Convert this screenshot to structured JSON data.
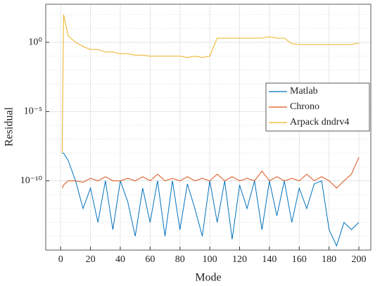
{
  "chart_data": {
    "type": "line",
    "x_label": "Mode",
    "y_label": "Residual",
    "x": [
      1,
      2,
      5,
      10,
      15,
      20,
      25,
      30,
      35,
      40,
      45,
      50,
      55,
      60,
      65,
      70,
      75,
      80,
      85,
      90,
      95,
      100,
      105,
      110,
      115,
      120,
      125,
      130,
      135,
      140,
      145,
      150,
      155,
      160,
      165,
      170,
      175,
      180,
      185,
      190,
      195,
      200
    ],
    "series": [
      {
        "name": "Matlab",
        "color": "#0072bd",
        "values": [
          1e-08,
          1e-08,
          3e-09,
          1e-10,
          1e-12,
          3e-11,
          1e-13,
          1e-10,
          3e-14,
          1e-10,
          3e-12,
          1e-14,
          3e-11,
          1e-13,
          1e-10,
          1e-14,
          1e-10,
          3e-14,
          6e-11,
          1e-12,
          1e-14,
          1e-10,
          1e-13,
          1e-10,
          6e-15,
          5e-11,
          1e-12,
          1e-10,
          3e-14,
          1e-10,
          3e-13,
          1e-10,
          1e-13,
          3e-11,
          1e-12,
          6e-11,
          1e-10,
          3e-14,
          2e-15,
          1e-13,
          3e-14,
          1e-13
        ]
      },
      {
        "name": "Chrono",
        "color": "#d95319",
        "values": [
          3e-11,
          5e-11,
          1e-10,
          1e-10,
          8e-11,
          1.5e-10,
          1e-10,
          2e-10,
          1e-10,
          1e-10,
          1.5e-10,
          1e-10,
          2e-10,
          1e-10,
          3e-10,
          1e-10,
          1.5e-10,
          1e-10,
          2e-10,
          1e-10,
          1.5e-10,
          1e-10,
          3e-10,
          1e-10,
          2e-10,
          1e-10,
          1.5e-10,
          1e-10,
          5e-10,
          1e-10,
          2e-10,
          1e-10,
          1.5e-10,
          1e-10,
          3e-10,
          1e-10,
          2e-10,
          1e-10,
          3e-11,
          1e-10,
          3e-10,
          5e-09
        ]
      },
      {
        "name": "Arpack dndrv4",
        "color": "#edb120",
        "values": [
          1e-08,
          100,
          3,
          1,
          0.5,
          0.3,
          0.3,
          0.2,
          0.2,
          0.15,
          0.15,
          0.12,
          0.12,
          0.1,
          0.1,
          0.1,
          0.1,
          0.1,
          0.08,
          0.1,
          0.08,
          0.1,
          2,
          2,
          2,
          2,
          2,
          2,
          2,
          2.5,
          2,
          2,
          0.8,
          0.7,
          0.7,
          0.7,
          0.7,
          0.7,
          0.7,
          0.7,
          0.7,
          0.9
        ]
      }
    ],
    "xlim": [
      -10,
      208
    ],
    "xticks": [
      0,
      20,
      40,
      60,
      80,
      100,
      120,
      140,
      160,
      180,
      200
    ],
    "ylim": [
      1e-15,
      562
    ],
    "yticks": [
      {
        "value": 1e-10,
        "label": "10⁻¹⁰"
      },
      {
        "value": 1e-05,
        "label": "10⁻⁵"
      },
      {
        "value": 1,
        "label": "10⁰"
      }
    ],
    "y_log": true,
    "grid": true,
    "minor_grid": true,
    "legend_position": "right"
  }
}
